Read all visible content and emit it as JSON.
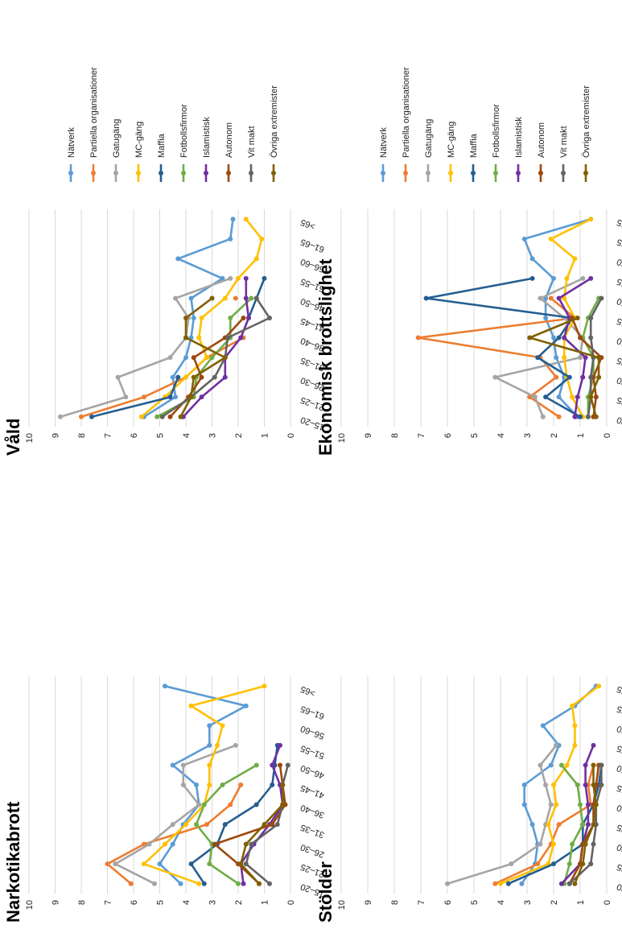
{
  "colors": {
    "Nätverk": "#5b9bd5",
    "Partiella organisationer": "#ed7d31",
    "Gatugäng": "#a5a5a5",
    "MC-gäng": "#ffc000",
    "Maffia": "#255e91",
    "Fotbollsfirmor": "#70ad47",
    "Islamistisk": "#7030a0",
    "Autonom": "#9e480e",
    "Vit makt": "#636363",
    "Övriga extremister": "#806000"
  },
  "chart_data": [
    {
      "type": "line",
      "title": "Narkotikabrott",
      "categories": [
        "15–20",
        "21–25",
        "26–30",
        "31–35",
        "36–40",
        "41–45",
        "46–50",
        "51–55",
        "56–60",
        "61–65",
        ">65"
      ],
      "ylim": [
        0,
        10
      ],
      "yticks": [
        0,
        1,
        2,
        3,
        4,
        5,
        6,
        7,
        8,
        9,
        10
      ],
      "grid": true,
      "legend": "none",
      "series": [
        {
          "name": "Nätverk",
          "values": [
            4.2,
            5.0,
            4.5,
            4.1,
            3.5,
            3.6,
            4.5,
            3.1,
            3.1,
            1.7,
            4.8
          ]
        },
        {
          "name": "Partiella organisationer",
          "values": [
            6.1,
            7.0,
            5.6,
            3.2,
            2.3,
            1.9,
            null,
            null,
            null,
            null,
            null
          ]
        },
        {
          "name": "Gatugäng",
          "values": [
            5.2,
            6.7,
            5.4,
            4.5,
            3.5,
            4.1,
            4.1,
            2.1,
            null,
            null,
            null
          ]
        },
        {
          "name": "MC-gäng",
          "values": [
            3.5,
            5.6,
            4.8,
            4.0,
            3.3,
            3.1,
            3.1,
            2.8,
            2.6,
            3.8,
            1.0
          ]
        },
        {
          "name": "Maffia",
          "values": [
            3.3,
            3.8,
            2.8,
            2.5,
            1.3,
            0.7,
            0.6,
            0.5,
            null,
            null,
            null
          ]
        },
        {
          "name": "Fotbollsfirmor",
          "values": [
            2.0,
            3.1,
            3.0,
            3.6,
            3.3,
            2.6,
            1.3,
            null,
            null,
            null,
            null
          ]
        },
        {
          "name": "Islamistisk",
          "values": [
            1.8,
            1.9,
            1.4,
            0.8,
            0.3,
            0.4,
            0.7,
            0.4,
            null,
            null,
            null
          ]
        },
        {
          "name": "Autonom",
          "values": [
            1.2,
            2.0,
            2.9,
            0.7,
            0.2,
            0.3,
            0.4,
            null,
            null,
            null,
            null
          ]
        },
        {
          "name": "Vit makt",
          "values": [
            0.8,
            1.7,
            1.5,
            0.5,
            0.3,
            0.3,
            0.1,
            null,
            null,
            null,
            null
          ]
        },
        {
          "name": "Övriga extremister",
          "values": [
            1.2,
            1.9,
            1.7,
            1.0,
            0.3,
            0.3,
            null,
            null,
            null,
            null,
            null
          ]
        }
      ]
    },
    {
      "type": "line",
      "title": "Våld",
      "categories": [
        "15–20",
        "21–25",
        "26–30",
        "31–35",
        "36–40",
        "41–45",
        "46–50",
        "51–55",
        "56–60",
        "61–65",
        ">65"
      ],
      "ylim": [
        0,
        10
      ],
      "yticks": [
        0,
        1,
        2,
        3,
        4,
        5,
        6,
        7,
        8,
        9,
        10
      ],
      "grid": true,
      "legend": "right",
      "series": [
        {
          "name": "Nätverk",
          "values": [
            5.6,
            4.4,
            4.5,
            4.0,
            3.8,
            3.7,
            3.8,
            2.6,
            4.3,
            2.3,
            2.2
          ]
        },
        {
          "name": "Partiella organisationer",
          "values": [
            8.0,
            5.6,
            4.0,
            3.2,
            1.8,
            null,
            2.1,
            null,
            null,
            null,
            null
          ]
        },
        {
          "name": "Gatugäng",
          "values": [
            8.8,
            6.3,
            6.6,
            4.6,
            4.0,
            3.9,
            4.4,
            2.3,
            null,
            null,
            null
          ]
        },
        {
          "name": "MC-gäng",
          "values": [
            5.7,
            4.8,
            4.0,
            3.2,
            3.5,
            3.4,
            2.5,
            2.0,
            1.3,
            1.1,
            1.7
          ]
        },
        {
          "name": "Maffia",
          "values": [
            7.6,
            4.6,
            4.3,
            null,
            null,
            1.6,
            1.3,
            1.0,
            null,
            null,
            null
          ]
        },
        {
          "name": "Fotbollsfirmor",
          "values": [
            5.1,
            3.7,
            3.6,
            3.0,
            2.3,
            2.3,
            1.5,
            null,
            null,
            null,
            null
          ]
        },
        {
          "name": "Islamistisk",
          "values": [
            4.1,
            3.4,
            2.5,
            2.5,
            1.9,
            1.6,
            1.7,
            1.7,
            null,
            null,
            null
          ]
        },
        {
          "name": "Autonom",
          "values": [
            4.6,
            3.9,
            3.4,
            3.7,
            2.5,
            1.8,
            null,
            null,
            null,
            null,
            null
          ]
        },
        {
          "name": "Vit makt",
          "values": [
            4.9,
            3.8,
            2.9,
            2.5,
            2.4,
            0.8,
            1.3,
            null,
            null,
            null,
            null
          ]
        },
        {
          "name": "Övriga extremister",
          "values": [
            4.2,
            3.8,
            3.7,
            2.5,
            4.0,
            4.0,
            3.0,
            null,
            null,
            null,
            null
          ]
        }
      ]
    },
    {
      "type": "line",
      "title": "Stölder",
      "categories": [
        "15–20",
        "21–25",
        "26–30",
        "31–35",
        "36–40",
        "41–45",
        "46–50",
        "51–55",
        "56–60",
        "61–65",
        ">65"
      ],
      "ylim": [
        0,
        10
      ],
      "yticks": [
        0,
        1,
        2,
        3,
        4,
        5,
        6,
        7,
        8,
        9,
        10
      ],
      "grid": true,
      "legend": "none",
      "series": [
        {
          "name": "Nätverk",
          "values": [
            3.2,
            2.7,
            2.6,
            2.8,
            3.1,
            3.1,
            2.1,
            1.8,
            2.4,
            1.2,
            0.4
          ]
        },
        {
          "name": "Partiella organisationer",
          "values": [
            4.2,
            2.6,
            2.1,
            1.8,
            0.6,
            0.7,
            0.5,
            null,
            null,
            null,
            null
          ]
        },
        {
          "name": "Gatugäng",
          "values": [
            6.0,
            3.6,
            2.5,
            2.3,
            2.1,
            2.3,
            2.5,
            1.9,
            null,
            null,
            null
          ]
        },
        {
          "name": "MC-gäng",
          "values": [
            4.0,
            2.2,
            2.0,
            2.2,
            1.9,
            2.0,
            1.5,
            1.2,
            1.2,
            1.3,
            0.3
          ]
        },
        {
          "name": "Maffia",
          "values": [
            3.7,
            2.0,
            0.9,
            0.9,
            0.5,
            0.3,
            0.2,
            null,
            null,
            null,
            null
          ]
        },
        {
          "name": "Fotbollsfirmor",
          "values": [
            1.6,
            1.4,
            1.3,
            0.9,
            1.0,
            1.1,
            1.7,
            null,
            null,
            null,
            null
          ]
        },
        {
          "name": "Islamistisk",
          "values": [
            1.7,
            1.0,
            0.9,
            0.7,
            0.7,
            0.8,
            0.8,
            0.5,
            null,
            null,
            null
          ]
        },
        {
          "name": "Autonom",
          "values": [
            1.4,
            1.0,
            0.9,
            0.5,
            0.5,
            0.4,
            0.3,
            null,
            null,
            null,
            null
          ]
        },
        {
          "name": "Vit makt",
          "values": [
            1.4,
            0.6,
            0.5,
            0.4,
            0.4,
            0.2,
            0.2,
            null,
            null,
            null,
            null
          ]
        },
        {
          "name": "Övriga extremister",
          "values": [
            1.2,
            0.9,
            0.8,
            0.5,
            0.4,
            0.5,
            0.5,
            null,
            null,
            null,
            null
          ]
        }
      ]
    },
    {
      "type": "line",
      "title": "Ekonomisk brottslighet",
      "categories": [
        "15–20",
        "21–25",
        "26–30",
        "31–35",
        "36–40",
        "41–45",
        "46–50",
        "51–55",
        "56–60",
        "61–65",
        ">65"
      ],
      "ylim": [
        0,
        10
      ],
      "yticks": [
        0,
        1,
        2,
        3,
        4,
        5,
        6,
        7,
        8,
        9,
        10
      ],
      "grid": true,
      "legend": "right",
      "series": [
        {
          "name": "Nätverk",
          "values": [
            1.1,
            1.8,
            1.6,
            1.9,
            2.0,
            2.3,
            2.3,
            2.0,
            2.8,
            3.1,
            0.6
          ]
        },
        {
          "name": "Partiella organisationer",
          "values": [
            1.8,
            2.9,
            1.9,
            2.5,
            7.1,
            1.2,
            2.1,
            null,
            null,
            null,
            null
          ]
        },
        {
          "name": "Gatugäng",
          "values": [
            2.4,
            2.7,
            4.2,
            1.0,
            0.9,
            1.6,
            2.5,
            0.9,
            null,
            null,
            null
          ]
        },
        {
          "name": "MC-gäng",
          "values": [
            0.9,
            1.3,
            1.5,
            1.6,
            1.6,
            1.2,
            1.6,
            1.5,
            1.2,
            2.1,
            0.6
          ]
        },
        {
          "name": "Maffia",
          "values": [
            1.0,
            2.3,
            1.4,
            2.6,
            1.8,
            1.3,
            6.8,
            2.8,
            null,
            null,
            null
          ]
        },
        {
          "name": "Fotbollsfirmor",
          "values": [
            0.7,
            0.7,
            0.5,
            0.5,
            0.9,
            0.7,
            0.3,
            null,
            null,
            null,
            null
          ]
        },
        {
          "name": "Islamistisk",
          "values": [
            1.2,
            1.1,
            0.9,
            0.8,
            1.6,
            1.4,
            1.8,
            0.6,
            null,
            null,
            null
          ]
        },
        {
          "name": "Autonom",
          "values": [
            0.5,
            0.4,
            0.5,
            0.2,
            1.0,
            1.3,
            null,
            null,
            null,
            null,
            null
          ]
        },
        {
          "name": "Vit makt",
          "values": [
            0.7,
            0.6,
            0.6,
            0.5,
            0.6,
            0.6,
            0.2,
            null,
            null,
            null,
            null
          ]
        },
        {
          "name": "Övriga extremister",
          "values": [
            0.4,
            0.6,
            0.3,
            0.3,
            2.9,
            1.1,
            null,
            null,
            null,
            null,
            null
          ]
        }
      ]
    }
  ]
}
